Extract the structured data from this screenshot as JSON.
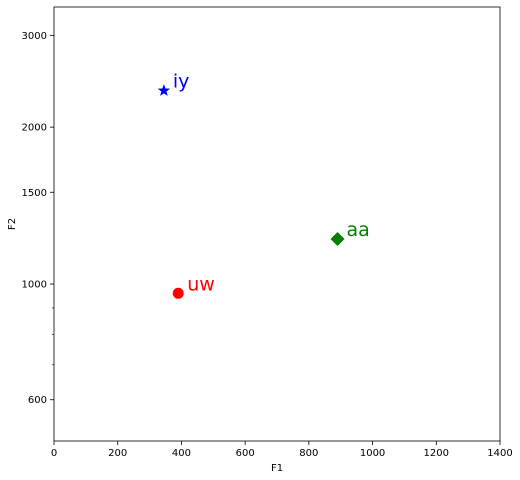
{
  "chart_data": {
    "type": "scatter",
    "title": "",
    "xlabel": "F1",
    "ylabel": "F2",
    "xlim": [
      0,
      1400
    ],
    "ylim": [
      500,
      3400
    ],
    "yscale": "log",
    "grid": false,
    "x_ticks": [
      0,
      200,
      400,
      600,
      800,
      1000,
      1200,
      1400
    ],
    "y_ticks": [
      600,
      1000,
      1500,
      2000,
      3000
    ],
    "y_minor_ticks": [
      700,
      800,
      900
    ],
    "points": [
      {
        "label": "iy",
        "x": 345,
        "y": 2350,
        "color": "#0000ff",
        "marker": "star"
      },
      {
        "label": "uw",
        "x": 390,
        "y": 960,
        "color": "#ff0000",
        "marker": "circle"
      },
      {
        "label": "aa",
        "x": 890,
        "y": 1220,
        "color": "#008000",
        "marker": "diamond"
      }
    ]
  }
}
